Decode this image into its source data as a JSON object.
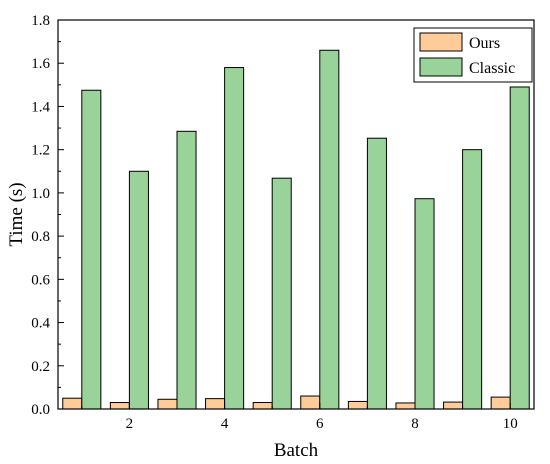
{
  "chart_data": {
    "type": "bar",
    "title": "",
    "xlabel": "Batch",
    "ylabel": "Time (s)",
    "x": [
      1,
      2,
      3,
      4,
      5,
      6,
      7,
      8,
      9,
      10
    ],
    "x_ticks": [
      2,
      4,
      6,
      8,
      10
    ],
    "xlim": [
      0.5,
      10.5
    ],
    "ylim": [
      0,
      1.8
    ],
    "y_ticks": [
      0.0,
      0.2,
      0.4,
      0.6,
      0.8,
      1.0,
      1.2,
      1.4,
      1.6,
      1.8
    ],
    "grid": false,
    "legend_position": "top-right",
    "series": [
      {
        "name": "Ours",
        "color": "#FFCC99",
        "values": [
          0.05,
          0.03,
          0.045,
          0.048,
          0.03,
          0.06,
          0.035,
          0.028,
          0.032,
          0.055
        ]
      },
      {
        "name": "Classic",
        "color": "#99D399",
        "values": [
          1.475,
          1.1,
          1.285,
          1.58,
          1.068,
          1.66,
          1.253,
          0.973,
          1.2,
          1.49
        ]
      }
    ]
  }
}
